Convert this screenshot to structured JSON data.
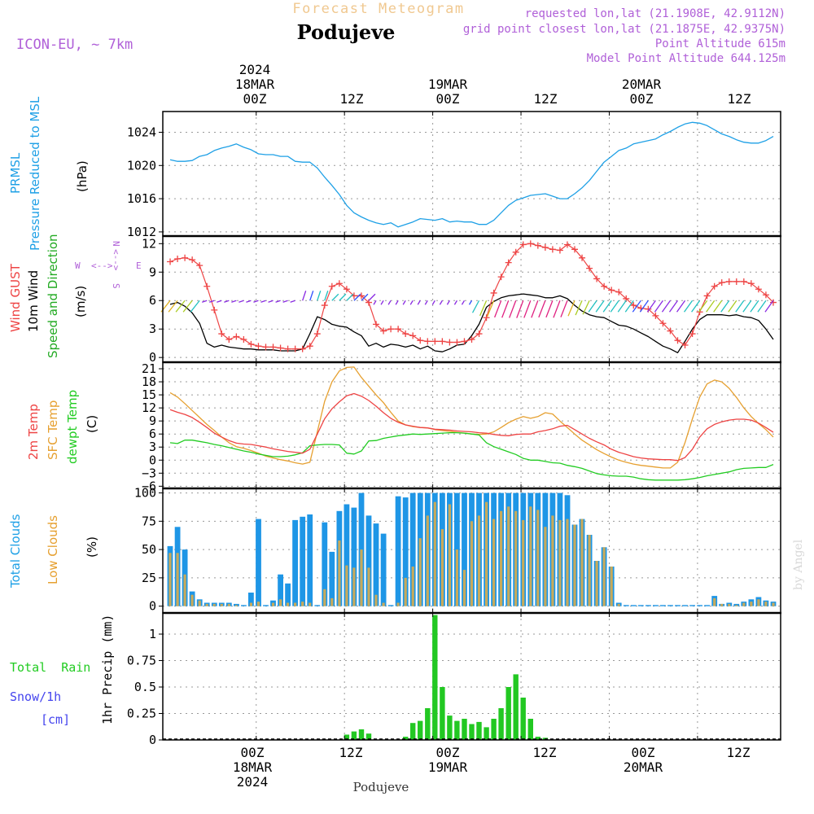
{
  "header": {
    "title": "Forecast Meteogram",
    "location": "Podujeve",
    "model": "ICON-EU, ~ 7km",
    "requested": "requested lon,lat (21.1908E, 42.9112N)",
    "grid_point": "grid point closest lon,lat (21.1875E, 42.9375N)",
    "point_altitude": "Point Altitude 615m",
    "model_altitude": "Model Point Altitude 644.125m"
  },
  "footer": {
    "location": "Podujeve",
    "credit": "by Angel"
  },
  "time_axis": {
    "top_year": "2024",
    "ticks": [
      {
        "hour": 12,
        "label": "00Z",
        "date": "18MAR"
      },
      {
        "hour": 24,
        "label": "12Z",
        "date": ""
      },
      {
        "hour": 36,
        "label": "00Z",
        "date": "19MAR"
      },
      {
        "hour": 48,
        "label": "12Z",
        "date": ""
      },
      {
        "hour": 60,
        "label": "00Z",
        "date": "20MAR"
      },
      {
        "hour": 72,
        "label": "12Z",
        "date": ""
      }
    ],
    "bottom_year": "2024"
  },
  "panel_labels": {
    "pressure": {
      "name": "PRMSL",
      "desc": "Pressure Reduced to MSL",
      "unit": "(hPa)"
    },
    "wind": {
      "gust": "Wind GUST",
      "ten_m": "10m Wind",
      "speed_dir": "Speed and Direction",
      "unit": "(m/s)",
      "compass_n": "N",
      "compass_s": "S",
      "compass_w": "W",
      "compass_e": "E"
    },
    "temp": {
      "t2m": "2m Temp",
      "sfc": "SFC Temp",
      "dewpt": "dewpt Temp",
      "unit": "(C)"
    },
    "clouds": {
      "total": "Total Clouds",
      "low": "Low Clouds",
      "unit": "(%)"
    },
    "precip": {
      "rain": "Total  Rain",
      "snow": "Snow/1h",
      "snow_unit": "[cm]",
      "axis": "1hr Precip (mm)"
    }
  },
  "colors": {
    "pressure": "#1ea0e6",
    "gust": "#ee4444",
    "wind10": "#000000",
    "t2m": "#ee4444",
    "sfc": "#e6a030",
    "dewpt": "#22cc22",
    "total_clouds": "#1e96e6",
    "low_clouds": "#c8aa5a",
    "rain": "#22c822",
    "title": "#f0c890",
    "purple": "#b060d8"
  },
  "chart_data": [
    {
      "type": "line",
      "name": "pressure",
      "title": "PRMSL Pressure Reduced to MSL",
      "ylabel": "(hPa)",
      "ylim": [
        1011.5,
        1026.5
      ],
      "yticks": [
        1012,
        1016,
        1020,
        1024
      ],
      "x_start_hour": 0.3,
      "x_step_hours": 1,
      "series": [
        {
          "name": "PRMSL",
          "values": [
            1020.7,
            1020.5,
            1020.5,
            1020.6,
            1021.1,
            1021.3,
            1021.8,
            1022.1,
            1022.3,
            1022.6,
            1022.2,
            1021.9,
            1021.4,
            1021.3,
            1021.3,
            1021.1,
            1021.1,
            1020.5,
            1020.4,
            1020.4,
            1019.7,
            1018.6,
            1017.6,
            1016.5,
            1015.2,
            1014.3,
            1013.8,
            1013.4,
            1013.1,
            1012.9,
            1013.1,
            1012.6,
            1012.9,
            1013.2,
            1013.6,
            1013.5,
            1013.4,
            1013.6,
            1013.2,
            1013.3,
            1013.2,
            1013.2,
            1012.9,
            1012.9,
            1013.4,
            1014.3,
            1015.2,
            1015.8,
            1016.1,
            1016.4,
            1016.5,
            1016.6,
            1016.3,
            1016.0,
            1016.0,
            1016.6,
            1017.3,
            1018.2,
            1019.3,
            1020.4,
            1021.1,
            1021.8,
            1022.1,
            1022.6,
            1022.8,
            1023.0,
            1023.2,
            1023.7,
            1024.1,
            1024.6,
            1025.0,
            1025.2,
            1025.1,
            1024.8,
            1024.3,
            1023.8,
            1023.5,
            1023.1,
            1022.8,
            1022.7,
            1022.7,
            1023.0,
            1023.5
          ]
        }
      ]
    },
    {
      "type": "line",
      "name": "wind",
      "title": "Wind GUST / 10m Wind Speed and Direction",
      "ylabel": "(m/s)",
      "ylim": [
        -0.5,
        12.8
      ],
      "yticks": [
        0,
        3,
        6,
        9,
        12
      ],
      "x_start_hour": 0.3,
      "x_step_hours": 1,
      "series": [
        {
          "name": "Wind GUST",
          "marker": "plus",
          "values": [
            10.1,
            10.4,
            10.5,
            10.3,
            9.7,
            7.5,
            5.0,
            2.5,
            1.9,
            2.2,
            1.9,
            1.4,
            1.2,
            1.1,
            1.1,
            1.0,
            0.9,
            0.9,
            0.9,
            1.2,
            2.5,
            5.5,
            7.5,
            7.8,
            7.2,
            6.5,
            6.5,
            5.8,
            3.5,
            2.8,
            3.0,
            3.0,
            2.5,
            2.3,
            1.8,
            1.7,
            1.7,
            1.7,
            1.6,
            1.6,
            1.7,
            1.9,
            2.5,
            4.2,
            6.8,
            8.5,
            10.0,
            11.1,
            11.9,
            12.0,
            11.8,
            11.6,
            11.4,
            11.3,
            11.9,
            11.4,
            10.5,
            9.4,
            8.3,
            7.5,
            7.1,
            6.9,
            6.2,
            5.5,
            5.2,
            5.1,
            4.4,
            3.6,
            2.8,
            1.8,
            1.3,
            2.5,
            4.8,
            6.5,
            7.5,
            7.9,
            8.0,
            8.0,
            8.0,
            7.8,
            7.2,
            6.6,
            5.8
          ]
        },
        {
          "name": "10m Wind",
          "values": [
            5.6,
            5.8,
            5.4,
            4.7,
            3.6,
            1.5,
            1.1,
            1.3,
            1.1,
            1.0,
            0.9,
            0.9,
            0.8,
            0.8,
            0.8,
            0.7,
            0.7,
            0.7,
            0.9,
            2.5,
            4.3,
            4.0,
            3.5,
            3.3,
            3.2,
            2.7,
            2.3,
            1.2,
            1.5,
            1.1,
            1.4,
            1.3,
            1.1,
            1.3,
            0.9,
            1.2,
            0.7,
            0.6,
            0.9,
            1.3,
            1.4,
            2.3,
            3.5,
            5.3,
            5.9,
            6.3,
            6.5,
            6.6,
            6.7,
            6.6,
            6.5,
            6.3,
            6.3,
            6.5,
            6.2,
            5.5,
            4.9,
            4.5,
            4.3,
            4.2,
            3.8,
            3.4,
            3.3,
            3.0,
            2.6,
            2.2,
            1.7,
            1.2,
            0.9,
            0.5,
            1.7,
            3.0,
            4.0,
            4.5,
            4.5,
            4.5,
            4.4,
            4.5,
            4.3,
            4.2,
            3.9,
            3.0,
            1.9
          ]
        }
      ]
    },
    {
      "type": "line",
      "name": "temperature",
      "title": "2m Temp / SFC Temp / dewpt Temp",
      "ylabel": "(C)",
      "ylim": [
        -6.5,
        22.5
      ],
      "yticks": [
        -6,
        -3,
        0,
        3,
        6,
        9,
        12,
        15,
        18,
        21
      ],
      "x_start_hour": 0.3,
      "x_step_hours": 1,
      "series": [
        {
          "name": "2m Temp",
          "values": [
            11.6,
            11.0,
            10.5,
            9.8,
            8.7,
            7.5,
            6.2,
            5.3,
            4.5,
            3.9,
            3.7,
            3.6,
            3.3,
            3.0,
            2.6,
            2.3,
            2.0,
            1.8,
            1.6,
            2.5,
            6.0,
            9.5,
            11.8,
            13.4,
            14.8,
            15.3,
            14.7,
            13.7,
            12.4,
            10.9,
            9.6,
            8.7,
            8.1,
            7.8,
            7.5,
            7.4,
            7.1,
            7.0,
            6.9,
            6.7,
            6.6,
            6.5,
            6.3,
            6.2,
            5.9,
            5.7,
            5.6,
            5.9,
            6.0,
            6.0,
            6.5,
            6.8,
            7.2,
            7.8,
            8.0,
            7.0,
            6.0,
            5.0,
            4.2,
            3.5,
            2.5,
            1.8,
            1.3,
            0.8,
            0.5,
            0.3,
            0.2,
            0.1,
            0.1,
            -0.1,
            0.6,
            2.5,
            5.3,
            7.2,
            8.2,
            8.8,
            9.2,
            9.4,
            9.4,
            9.2,
            8.5,
            7.5,
            6.4
          ]
        },
        {
          "name": "SFC Temp",
          "values": [
            15.5,
            14.5,
            13.0,
            11.4,
            9.8,
            8.2,
            6.8,
            5.3,
            4.0,
            3.1,
            2.7,
            2.2,
            1.6,
            0.9,
            0.5,
            0.1,
            -0.2,
            -0.6,
            -0.9,
            -0.5,
            6.5,
            13.5,
            18.0,
            20.5,
            21.3,
            21.4,
            19.0,
            17.0,
            15.0,
            13.2,
            11.0,
            9.0,
            8.1,
            7.7,
            7.5,
            7.4,
            7.0,
            6.8,
            6.6,
            6.4,
            6.2,
            6.0,
            5.9,
            6.0,
            6.5,
            7.5,
            8.6,
            9.4,
            10.0,
            9.6,
            10.0,
            10.9,
            10.6,
            9.0,
            7.5,
            6.0,
            4.6,
            3.5,
            2.4,
            1.5,
            0.7,
            0.0,
            -0.5,
            -0.9,
            -1.2,
            -1.4,
            -1.6,
            -1.8,
            -1.8,
            -0.5,
            4.0,
            9.5,
            14.5,
            17.5,
            18.4,
            18.0,
            16.5,
            14.4,
            12.0,
            10.0,
            8.4,
            7.0,
            5.3
          ]
        },
        {
          "name": "dewpt Temp",
          "values": [
            4.0,
            3.8,
            4.6,
            4.6,
            4.3,
            4.0,
            3.6,
            3.3,
            2.9,
            2.5,
            2.1,
            1.8,
            1.4,
            1.1,
            0.8,
            0.8,
            0.9,
            1.2,
            1.7,
            3.3,
            3.5,
            3.6,
            3.6,
            3.5,
            1.6,
            1.4,
            2.1,
            4.4,
            4.5,
            5.0,
            5.3,
            5.6,
            5.8,
            6.0,
            5.9,
            6.0,
            6.1,
            6.2,
            6.3,
            6.3,
            6.2,
            6.0,
            5.8,
            4.0,
            3.1,
            2.5,
            1.9,
            1.3,
            0.4,
            0.0,
            0.0,
            -0.3,
            -0.6,
            -0.7,
            -1.2,
            -1.5,
            -1.9,
            -2.5,
            -3.1,
            -3.4,
            -3.6,
            -3.7,
            -3.7,
            -3.9,
            -4.3,
            -4.5,
            -4.6,
            -4.6,
            -4.6,
            -4.6,
            -4.5,
            -4.3,
            -4.0,
            -3.6,
            -3.3,
            -3.0,
            -2.7,
            -2.2,
            -1.9,
            -1.8,
            -1.7,
            -1.7,
            -1.0
          ]
        }
      ]
    },
    {
      "type": "bar",
      "name": "clouds",
      "title": "Total Clouds / Low Clouds",
      "ylabel": "(%)",
      "ylim": [
        -6,
        104
      ],
      "yticks": [
        0,
        25,
        50,
        75,
        100
      ],
      "x_start_hour": 0.3,
      "x_step_hours": 1,
      "series": [
        {
          "name": "Total Clouds",
          "values": [
            53,
            70,
            50,
            13,
            6,
            3,
            3,
            3,
            3,
            2,
            1,
            12,
            77,
            1,
            5,
            28,
            20,
            76,
            79,
            81,
            1,
            74,
            48,
            84,
            90,
            87,
            100,
            80,
            73,
            64,
            1,
            97,
            96,
            100,
            100,
            100,
            100,
            100,
            100,
            100,
            100,
            100,
            100,
            100,
            100,
            100,
            100,
            100,
            100,
            100,
            100,
            100,
            100,
            100,
            98,
            72,
            77,
            63,
            40,
            52,
            35,
            3,
            1,
            1,
            1,
            1,
            1,
            1,
            1,
            1,
            1,
            1,
            1,
            1,
            9,
            2,
            3,
            2,
            4,
            6,
            8,
            5,
            4
          ]
        },
        {
          "name": "Low Clouds",
          "values": [
            47,
            47,
            28,
            10,
            5,
            2,
            2,
            2,
            2,
            1,
            0,
            3,
            4,
            0,
            3,
            6,
            3,
            3,
            4,
            3,
            0,
            15,
            7,
            58,
            36,
            34,
            50,
            34,
            10,
            3,
            0,
            3,
            25,
            35,
            60,
            80,
            92,
            68,
            90,
            50,
            32,
            75,
            80,
            92,
            77,
            84,
            88,
            84,
            76,
            88,
            85,
            70,
            80,
            76,
            77,
            72,
            77,
            63,
            40,
            52,
            35,
            2,
            0,
            0,
            0,
            0,
            0,
            0,
            0,
            0,
            0,
            0,
            0,
            0,
            7,
            2,
            2,
            1,
            3,
            4,
            6,
            4,
            3
          ]
        }
      ]
    },
    {
      "type": "bar",
      "name": "precip",
      "title": "Total Rain / Snow/1h [cm]",
      "ylabel": "1hr Precip (mm)",
      "ylim": [
        0,
        1.2
      ],
      "yticks": [
        0,
        0.25,
        0.5,
        0.75,
        1
      ],
      "x_start_hour": 0.3,
      "x_step_hours": 1,
      "series": [
        {
          "name": "Total Rain",
          "values": [
            0,
            0,
            0,
            0,
            0,
            0,
            0,
            0,
            0,
            0,
            0,
            0,
            0,
            0,
            0,
            0,
            0,
            0,
            0,
            0,
            0,
            0,
            0,
            0,
            0.05,
            0.08,
            0.1,
            0.06,
            0,
            0,
            0,
            0,
            0.03,
            0.16,
            0.18,
            0.3,
            1.18,
            0.5,
            0.23,
            0.18,
            0.2,
            0.15,
            0.17,
            0.12,
            0.2,
            0.3,
            0.5,
            0.62,
            0.4,
            0.2,
            0.03,
            0.02,
            0,
            0,
            0,
            0,
            0,
            0,
            0,
            0,
            0,
            0,
            0,
            0,
            0,
            0,
            0,
            0,
            0,
            0,
            0,
            0,
            0,
            0,
            0,
            0,
            0,
            0,
            0,
            0,
            0,
            0,
            0
          ]
        }
      ]
    }
  ]
}
